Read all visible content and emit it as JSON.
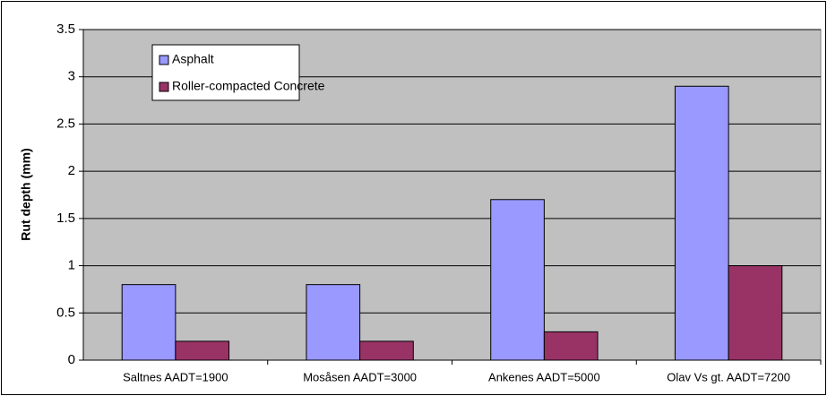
{
  "chart_data": {
    "type": "bar",
    "y_label": "Rut depth (mm)",
    "categories": [
      "Saltnes AADT=1900",
      "Mosåsen AADT=3000",
      "Ankenes AADT=5000",
      "Olav Vs gt. AADT=7200"
    ],
    "series": [
      {
        "name": "Asphalt",
        "color": "#9999ff",
        "values": [
          0.8,
          0.8,
          1.7,
          2.9
        ]
      },
      {
        "name": "Roller-compacted Concrete",
        "color": "#993366",
        "values": [
          0.2,
          0.2,
          0.3,
          1.0
        ]
      }
    ],
    "ylim": [
      0,
      3.5
    ],
    "yticks": [
      0,
      0.5,
      1,
      1.5,
      2,
      2.5,
      3,
      3.5
    ],
    "grid": true,
    "legend_position": "upper left"
  }
}
